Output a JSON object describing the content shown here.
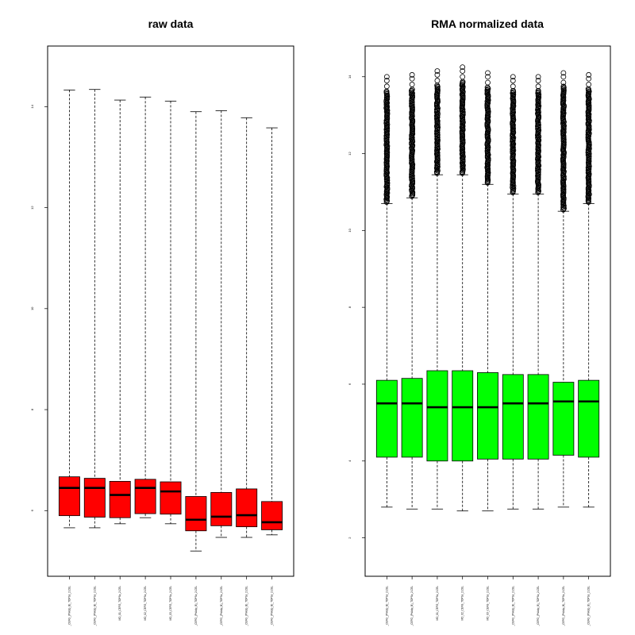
{
  "chart_data": [
    {
      "type": "boxplot",
      "title": "raw data",
      "xlabel": "",
      "ylabel": "",
      "ylim": [
        4.7,
        15.2
      ],
      "yticks": [
        6,
        8,
        10,
        12,
        14
      ],
      "fill_color": "#ff0000",
      "categories": [
        "_CEFG_(PrAdip_B)_TOPSs_2.CEL",
        "_CEFG_(PrAdip_B)_TOPSs_2.CEL",
        "MD_01_CEFG_TOPSs_2.CEL",
        "MD_02_CEFG_TOPSs_2.CEL",
        "MD_03_CEFG_TOPSs_2.CEL",
        "_CEFG_(PrAdip_B)_TOPSs_2.CEL",
        "_CEFG_(PrAdip_B)_TOPSs_2.CEL",
        "_CEFG_(PrAdip_B)_TOPSs_2.CEL",
        "_CEFG_(PrAdip_B)_TOPSs_2.CEL"
      ],
      "boxes": [
        {
          "whisker_low": 5.66,
          "q1": 5.9,
          "median": 6.45,
          "q3": 6.67,
          "whisker_high": 14.33
        },
        {
          "whisker_low": 5.66,
          "q1": 5.87,
          "median": 6.45,
          "q3": 6.64,
          "whisker_high": 14.34
        },
        {
          "whisker_low": 5.74,
          "q1": 5.86,
          "median": 6.31,
          "q3": 6.58,
          "whisker_high": 14.13
        },
        {
          "whisker_low": 5.86,
          "q1": 5.94,
          "median": 6.45,
          "q3": 6.62,
          "whisker_high": 14.19
        },
        {
          "whisker_low": 5.74,
          "q1": 5.93,
          "median": 6.38,
          "q3": 6.57,
          "whisker_high": 14.11
        },
        {
          "whisker_low": 5.2,
          "q1": 5.6,
          "median": 5.82,
          "q3": 6.28,
          "whisker_high": 13.9
        },
        {
          "whisker_low": 5.47,
          "q1": 5.7,
          "median": 5.88,
          "q3": 6.36,
          "whisker_high": 13.92
        },
        {
          "whisker_low": 5.47,
          "q1": 5.68,
          "median": 5.91,
          "q3": 6.43,
          "whisker_high": 13.78
        },
        {
          "whisker_low": 5.52,
          "q1": 5.62,
          "median": 5.77,
          "q3": 6.18,
          "whisker_high": 13.58
        }
      ]
    },
    {
      "type": "boxplot",
      "title": "RMA normalized data",
      "xlabel": "",
      "ylabel": "",
      "ylim": [
        1.0,
        14.8
      ],
      "yticks": [
        2,
        4,
        6,
        8,
        10,
        12,
        14
      ],
      "fill_color": "#00ff00",
      "categories": [
        "_CEFG_(PrAdip_B)_TOPSs_2.CEL",
        "_CEFG_(PrAdip_B)_TOPSs_2.CEL",
        "MD_01_CEFG_TOPSs_2.CEL",
        "MD_02_CEFG_TOPSs_2.CEL",
        "MD_03_CEFG_TOPSs_2.CEL",
        "_CEFG_(PrAdip_B)_TOPSs_2.CEL",
        "_CEFG_(PrAdip_B)_TOPSs_2.CEL",
        "_CEFG_(PrAdip_B)_TOPSs_2.CEL",
        "_CEFG_(PrAdip_B)_TOPSs_2.CEL"
      ],
      "boxes": [
        {
          "whisker_low": 2.8,
          "q1": 4.1,
          "median": 5.5,
          "q3": 6.1,
          "whisker_high": 10.7,
          "outlier_max": 14.0
        },
        {
          "whisker_low": 2.75,
          "q1": 4.1,
          "median": 5.5,
          "q3": 6.15,
          "whisker_high": 10.85,
          "outlier_max": 14.05
        },
        {
          "whisker_low": 2.75,
          "q1": 4.0,
          "median": 5.4,
          "q3": 6.35,
          "whisker_high": 11.45,
          "outlier_max": 14.15
        },
        {
          "whisker_low": 2.7,
          "q1": 4.0,
          "median": 5.4,
          "q3": 6.35,
          "whisker_high": 11.45,
          "outlier_max": 14.25
        },
        {
          "whisker_low": 2.7,
          "q1": 4.05,
          "median": 5.4,
          "q3": 6.3,
          "whisker_high": 11.2,
          "outlier_max": 14.1
        },
        {
          "whisker_low": 2.75,
          "q1": 4.05,
          "median": 5.5,
          "q3": 6.25,
          "whisker_high": 10.95,
          "outlier_max": 14.0
        },
        {
          "whisker_low": 2.75,
          "q1": 4.05,
          "median": 5.5,
          "q3": 6.25,
          "whisker_high": 10.95,
          "outlier_max": 14.0
        },
        {
          "whisker_low": 2.8,
          "q1": 4.15,
          "median": 5.55,
          "q3": 6.05,
          "whisker_high": 10.5,
          "outlier_max": 14.1
        },
        {
          "whisker_low": 2.8,
          "q1": 4.1,
          "median": 5.55,
          "q3": 6.1,
          "whisker_high": 10.7,
          "outlier_max": 14.05
        }
      ]
    }
  ]
}
